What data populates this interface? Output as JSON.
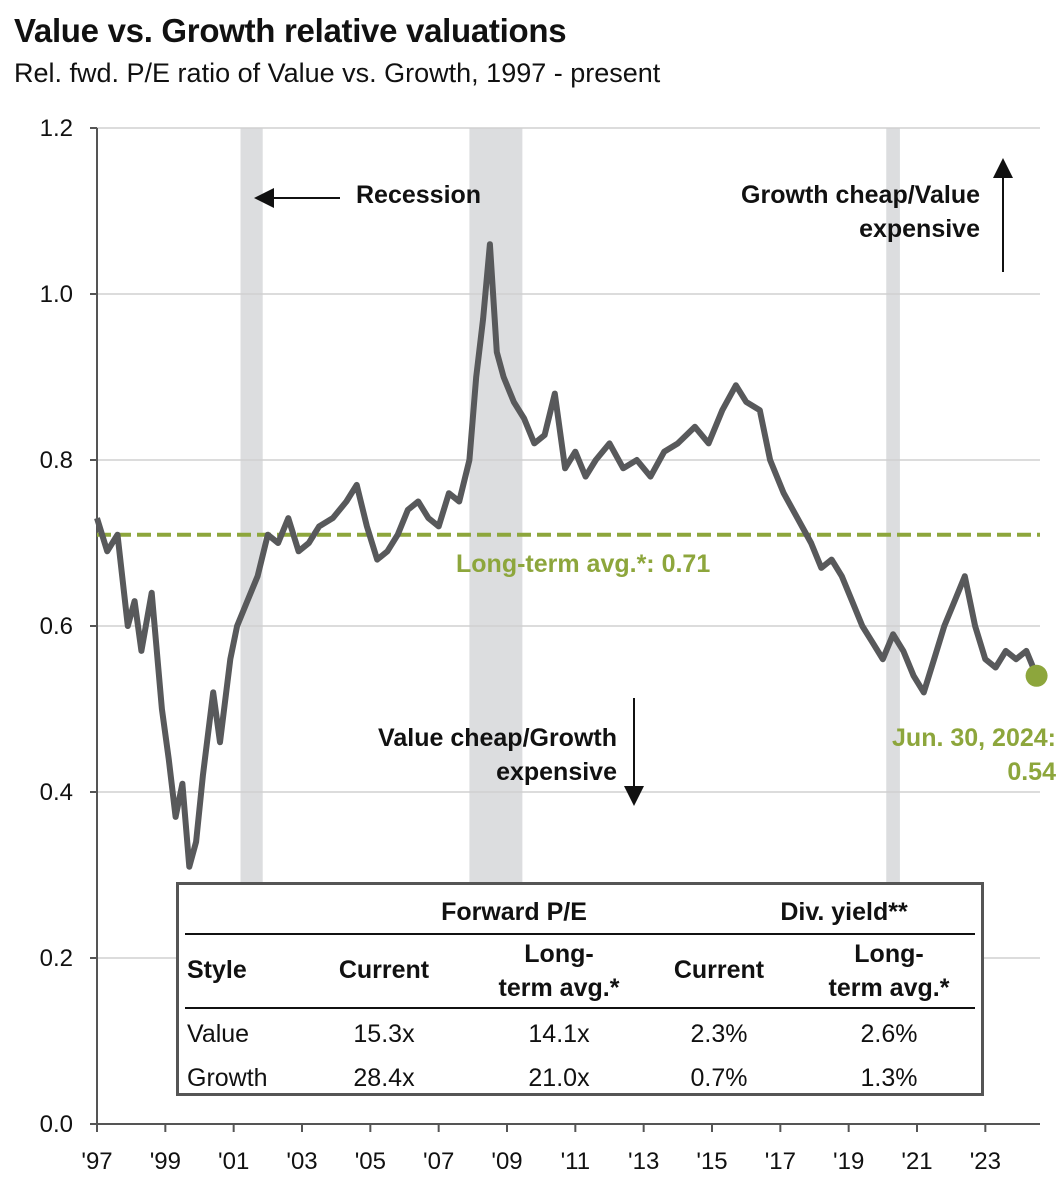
{
  "header": {
    "title": "Value vs. Growth relative valuations",
    "subtitle": "Rel. fwd. P/E ratio of Value vs. Growth, 1997 - present"
  },
  "colors": {
    "series": "#58595b",
    "average": "#8da63c",
    "recession": "#dcdddf",
    "grid": "#d0d0d0"
  },
  "chart_data": {
    "type": "line",
    "ylim": [
      0.0,
      1.2
    ],
    "yticks": [
      "0.0",
      "0.2",
      "0.4",
      "0.6",
      "0.8",
      "1.0",
      "1.2"
    ],
    "xlim": [
      1997.0,
      2024.6
    ],
    "xticks": [
      "'97",
      "'99",
      "'01",
      "'03",
      "'05",
      "'07",
      "'09",
      "'11",
      "'13",
      "'15",
      "'17",
      "'19",
      "'21",
      "'23"
    ],
    "grid": true,
    "series": [
      {
        "values": [
          [
            1997.0,
            0.73
          ],
          [
            1997.3,
            0.69
          ],
          [
            1997.6,
            0.71
          ],
          [
            1997.9,
            0.6
          ],
          [
            1998.1,
            0.63
          ],
          [
            1998.3,
            0.57
          ],
          [
            1998.6,
            0.64
          ],
          [
            1998.9,
            0.5
          ],
          [
            1999.1,
            0.44
          ],
          [
            1999.3,
            0.37
          ],
          [
            1999.5,
            0.41
          ],
          [
            1999.7,
            0.31
          ],
          [
            1999.9,
            0.34
          ],
          [
            2000.1,
            0.42
          ],
          [
            2000.4,
            0.52
          ],
          [
            2000.6,
            0.46
          ],
          [
            2000.9,
            0.56
          ],
          [
            2001.1,
            0.6
          ],
          [
            2001.4,
            0.63
          ],
          [
            2001.7,
            0.66
          ],
          [
            2002.0,
            0.71
          ],
          [
            2002.3,
            0.7
          ],
          [
            2002.6,
            0.73
          ],
          [
            2002.9,
            0.69
          ],
          [
            2003.2,
            0.7
          ],
          [
            2003.5,
            0.72
          ],
          [
            2003.9,
            0.73
          ],
          [
            2004.3,
            0.75
          ],
          [
            2004.6,
            0.77
          ],
          [
            2004.9,
            0.72
          ],
          [
            2005.2,
            0.68
          ],
          [
            2005.5,
            0.69
          ],
          [
            2005.8,
            0.71
          ],
          [
            2006.1,
            0.74
          ],
          [
            2006.4,
            0.75
          ],
          [
            2006.7,
            0.73
          ],
          [
            2007.0,
            0.72
          ],
          [
            2007.3,
            0.76
          ],
          [
            2007.6,
            0.75
          ],
          [
            2007.9,
            0.8
          ],
          [
            2008.1,
            0.9
          ],
          [
            2008.3,
            0.97
          ],
          [
            2008.5,
            1.06
          ],
          [
            2008.7,
            0.93
          ],
          [
            2008.9,
            0.9
          ],
          [
            2009.2,
            0.87
          ],
          [
            2009.5,
            0.85
          ],
          [
            2009.8,
            0.82
          ],
          [
            2010.1,
            0.83
          ],
          [
            2010.4,
            0.88
          ],
          [
            2010.7,
            0.79
          ],
          [
            2011.0,
            0.81
          ],
          [
            2011.3,
            0.78
          ],
          [
            2011.6,
            0.8
          ],
          [
            2012.0,
            0.82
          ],
          [
            2012.4,
            0.79
          ],
          [
            2012.8,
            0.8
          ],
          [
            2013.2,
            0.78
          ],
          [
            2013.6,
            0.81
          ],
          [
            2014.0,
            0.82
          ],
          [
            2014.5,
            0.84
          ],
          [
            2014.9,
            0.82
          ],
          [
            2015.3,
            0.86
          ],
          [
            2015.7,
            0.89
          ],
          [
            2016.0,
            0.87
          ],
          [
            2016.4,
            0.86
          ],
          [
            2016.7,
            0.8
          ],
          [
            2017.1,
            0.76
          ],
          [
            2017.5,
            0.73
          ],
          [
            2017.9,
            0.7
          ],
          [
            2018.2,
            0.67
          ],
          [
            2018.5,
            0.68
          ],
          [
            2018.8,
            0.66
          ],
          [
            2019.1,
            0.63
          ],
          [
            2019.4,
            0.6
          ],
          [
            2019.7,
            0.58
          ],
          [
            2020.0,
            0.56
          ],
          [
            2020.3,
            0.59
          ],
          [
            2020.6,
            0.57
          ],
          [
            2020.9,
            0.54
          ],
          [
            2021.2,
            0.52
          ],
          [
            2021.5,
            0.56
          ],
          [
            2021.8,
            0.6
          ],
          [
            2022.1,
            0.63
          ],
          [
            2022.4,
            0.66
          ],
          [
            2022.7,
            0.6
          ],
          [
            2023.0,
            0.56
          ],
          [
            2023.3,
            0.55
          ],
          [
            2023.6,
            0.57
          ],
          [
            2023.9,
            0.56
          ],
          [
            2024.2,
            0.57
          ],
          [
            2024.5,
            0.54
          ]
        ]
      }
    ],
    "recessions": [
      [
        2001.2,
        2001.85
      ],
      [
        2007.9,
        2009.45
      ],
      [
        2020.1,
        2020.5
      ]
    ],
    "long_term_average": {
      "value": 0.71,
      "label": "Long-term avg.*:  0.71"
    },
    "latest": {
      "x": 2024.5,
      "y": 0.54,
      "label_line1": "Jun. 30, 2024:",
      "label_line2": "0.54"
    },
    "annotations": {
      "recession": "Recession",
      "growth_cheap_line1": "Growth cheap/Value",
      "growth_cheap_line2": "expensive",
      "value_cheap_line1": "Value cheap/Growth",
      "value_cheap_line2": "expensive"
    }
  },
  "table": {
    "group_forward_pe": "Forward P/E",
    "group_div_yield": "Div. yield**",
    "col_style": "Style",
    "col_current": "Current",
    "col_lt_line1": "Long-",
    "col_lt_line2": "term avg.*",
    "rows": [
      {
        "style": "Value",
        "pe_current": "15.3x",
        "pe_avg": "14.1x",
        "dy_current": "2.3%",
        "dy_avg": "2.6%"
      },
      {
        "style": "Growth",
        "pe_current": "28.4x",
        "pe_avg": "21.0x",
        "dy_current": "0.7%",
        "dy_avg": "1.3%"
      }
    ]
  }
}
